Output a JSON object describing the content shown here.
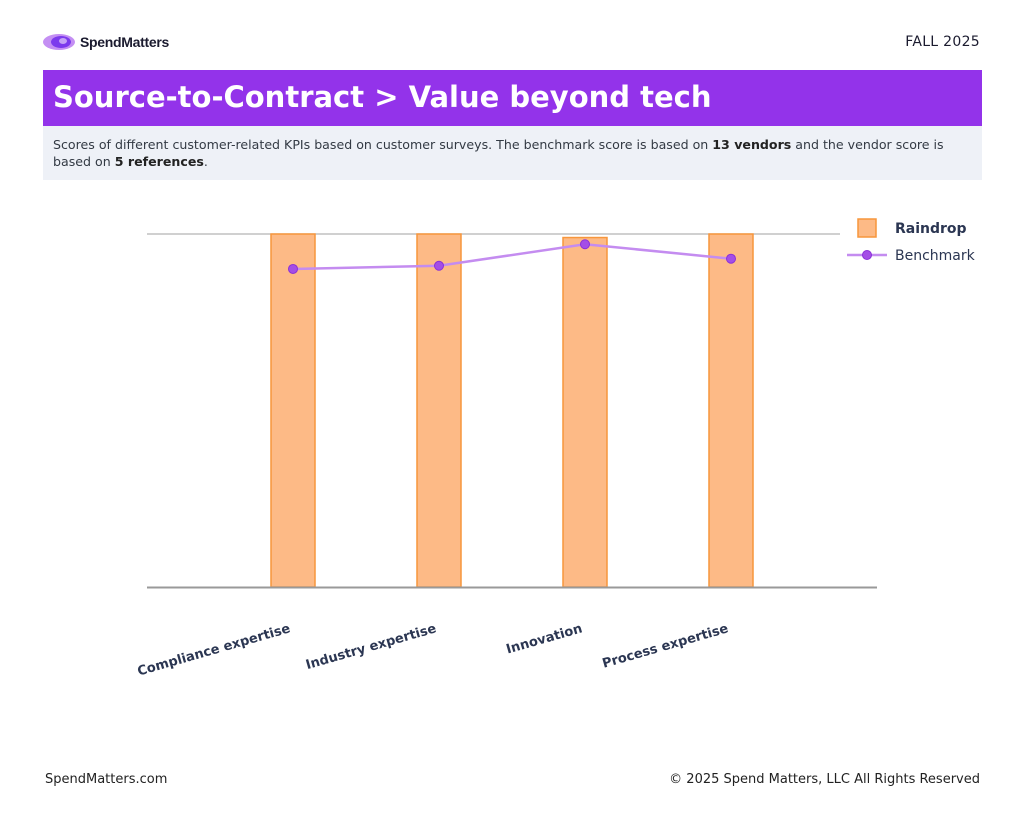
{
  "header": {
    "logo_text": "SpendMatters",
    "season": "FALL 2025"
  },
  "title": "Source-to-Contract > Value beyond tech",
  "description": {
    "part1": "Scores of different customer-related KPIs based on customer surveys. The benchmark score is based on ",
    "vendors": "13 vendors",
    "part2": " and the vendor score is based on ",
    "references": "5 references",
    "part3": "."
  },
  "chart_data": {
    "type": "bar",
    "categories": [
      "Compliance expertise",
      "Industry expertise",
      "Innovation",
      "Process expertise"
    ],
    "series": [
      {
        "name": "Raindrop",
        "kind": "bar",
        "color": "#fdba86",
        "values": [
          100,
          100,
          99,
          100
        ]
      },
      {
        "name": "Benchmark",
        "kind": "line",
        "color": "#9333ea",
        "values": [
          90.1,
          91.0,
          97.1,
          93.0
        ]
      }
    ],
    "ylim": [
      0,
      100
    ],
    "title": "",
    "xlabel": "",
    "ylabel": "",
    "legend_position": "top-right",
    "colors": {
      "bar_stroke": "#f7963c",
      "line": "#c48cf0",
      "marker": "#a44ee6",
      "axis": "#999999",
      "label": "#2b3652"
    }
  },
  "footer": {
    "site": "SpendMatters.com",
    "copyright": "© 2025 Spend Matters, LLC All Rights Reserved"
  }
}
